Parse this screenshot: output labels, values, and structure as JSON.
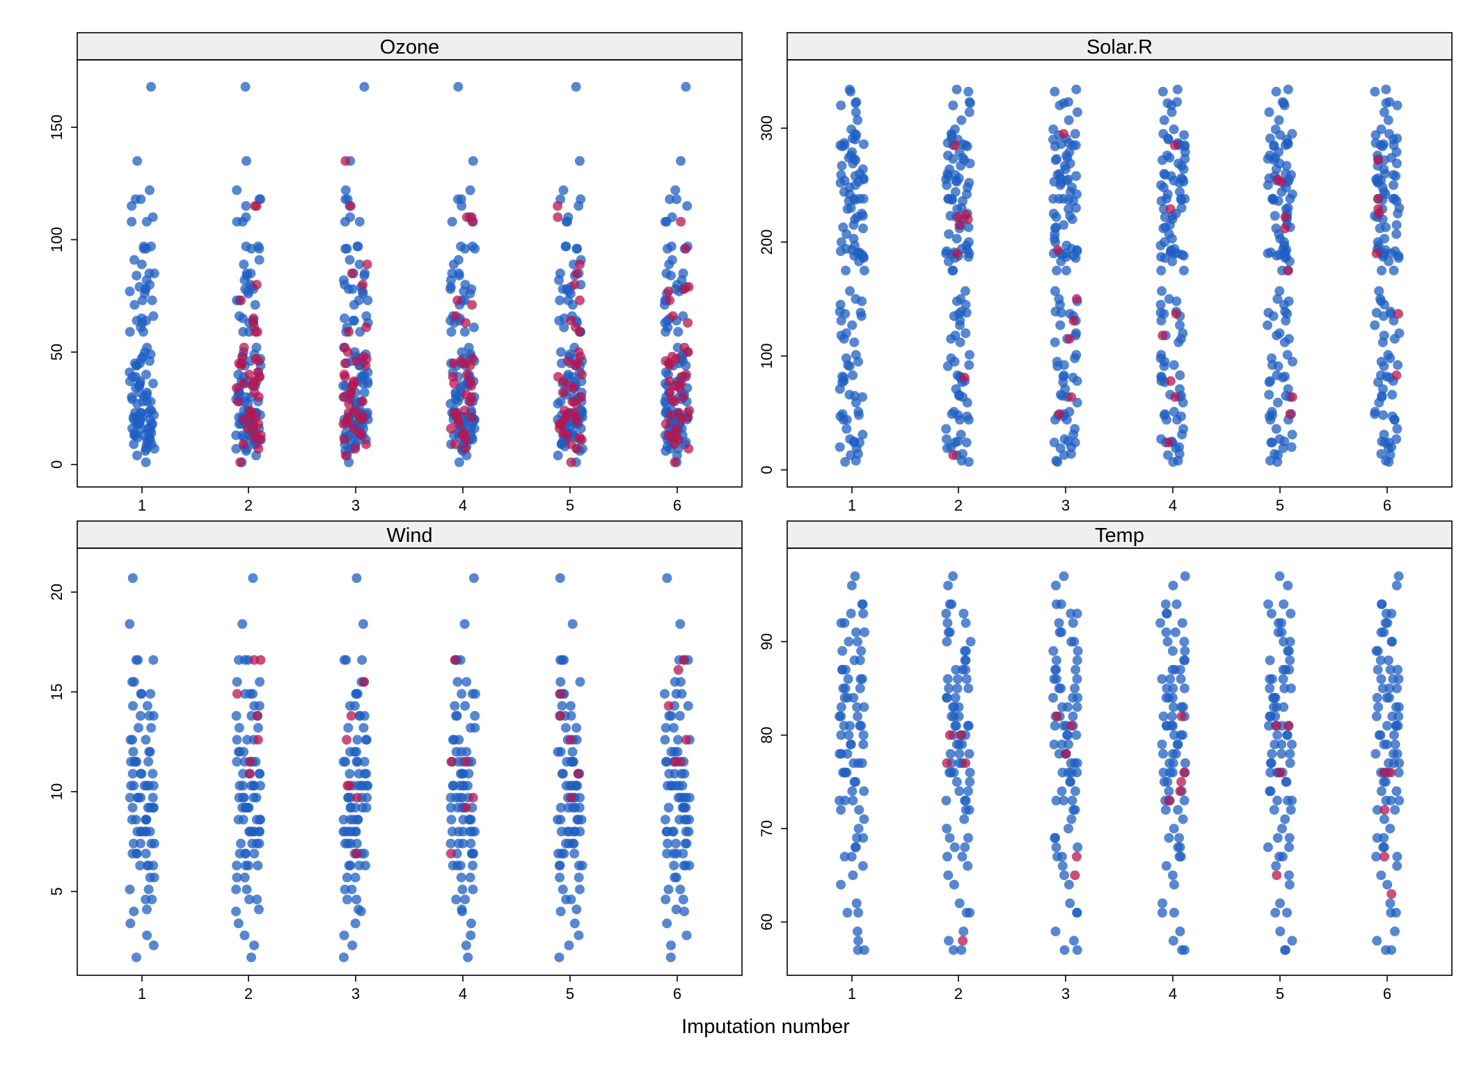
{
  "figure": {
    "xlabel": "Imputation number"
  },
  "colors": {
    "observed": "#1f5fc2",
    "imputed": "#b8154f",
    "strip": "#efefef"
  },
  "chart_data": [
    {
      "type": "scatter",
      "title": "Ozone",
      "x_categories": [
        1,
        2,
        3,
        4,
        5,
        6
      ],
      "ylim": [
        -10,
        180
      ],
      "yticks": [
        0,
        50,
        100,
        150
      ],
      "ytick_labels": [
        "0",
        "50",
        "100",
        "150"
      ],
      "observed_values": [
        1,
        4,
        6,
        7,
        7,
        8,
        9,
        9,
        10,
        11,
        11,
        12,
        12,
        13,
        13,
        13,
        14,
        14,
        14,
        16,
        16,
        16,
        16,
        18,
        18,
        18,
        18,
        18,
        19,
        20,
        20,
        20,
        21,
        21,
        21,
        21,
        22,
        23,
        23,
        23,
        23,
        24,
        24,
        27,
        28,
        28,
        28,
        29,
        30,
        30,
        31,
        32,
        32,
        34,
        35,
        35,
        36,
        36,
        37,
        37,
        39,
        39,
        40,
        41,
        44,
        44,
        45,
        45,
        46,
        47,
        48,
        49,
        50,
        52,
        59,
        59,
        61,
        63,
        64,
        64,
        65,
        66,
        71,
        73,
        73,
        76,
        77,
        78,
        78,
        79,
        80,
        82,
        84,
        85,
        85,
        89,
        91,
        96,
        96,
        97,
        97,
        108,
        108,
        110,
        115,
        118,
        118,
        122,
        135,
        168
      ],
      "imputed_values": [
        [],
        [
          1,
          7,
          9,
          11,
          12,
          13,
          14,
          16,
          18,
          18,
          20,
          21,
          22,
          23,
          24,
          28,
          30,
          32,
          34,
          35,
          36,
          37,
          37,
          39,
          40,
          41,
          44,
          45,
          45,
          46,
          47,
          48,
          52,
          59,
          59,
          63,
          65,
          73,
          80,
          115,
          115
        ],
        [
          4,
          7,
          9,
          11,
          13,
          14,
          16,
          18,
          19,
          20,
          20,
          21,
          22,
          23,
          24,
          27,
          28,
          30,
          31,
          32,
          35,
          36,
          37,
          39,
          40,
          44,
          45,
          46,
          47,
          48,
          50,
          52,
          59,
          61,
          80,
          85,
          89,
          115,
          135
        ],
        [
          7,
          9,
          11,
          13,
          14,
          16,
          18,
          20,
          21,
          22,
          23,
          24,
          28,
          30,
          31,
          35,
          36,
          37,
          39,
          40,
          44,
          45,
          45,
          46,
          47,
          63,
          66,
          71,
          73,
          108,
          110,
          110
        ],
        [
          1,
          7,
          9,
          11,
          12,
          13,
          14,
          16,
          18,
          18,
          19,
          20,
          21,
          22,
          23,
          24,
          27,
          28,
          30,
          32,
          34,
          35,
          37,
          39,
          40,
          44,
          45,
          46,
          48,
          50,
          59,
          61,
          64,
          73,
          80,
          85,
          89,
          110,
          115
        ],
        [
          1,
          7,
          9,
          11,
          12,
          13,
          14,
          16,
          18,
          20,
          21,
          22,
          23,
          24,
          28,
          29,
          30,
          32,
          34,
          35,
          36,
          37,
          39,
          40,
          44,
          45,
          46,
          47,
          48,
          50,
          52,
          63,
          66,
          73,
          77,
          78,
          79,
          96,
          108
        ]
      ]
    },
    {
      "type": "scatter",
      "title": "Solar.R",
      "x_categories": [
        1,
        2,
        3,
        4,
        5,
        6
      ],
      "ylim": [
        -15,
        360
      ],
      "yticks": [
        0,
        100,
        200,
        300
      ],
      "ytick_labels": [
        "0",
        "100",
        "200",
        "300"
      ],
      "observed_values": [
        7,
        8,
        13,
        14,
        19,
        20,
        24,
        24,
        25,
        27,
        31,
        36,
        44,
        44,
        47,
        48,
        49,
        51,
        59,
        64,
        65,
        66,
        71,
        77,
        78,
        81,
        82,
        83,
        91,
        92,
        95,
        98,
        101,
        112,
        115,
        118,
        120,
        127,
        131,
        135,
        137,
        138,
        139,
        145,
        148,
        150,
        157,
        175,
        175,
        183,
        186,
        187,
        188,
        189,
        190,
        190,
        191,
        192,
        193,
        194,
        197,
        200,
        203,
        207,
        212,
        213,
        215,
        220,
        222,
        223,
        225,
        229,
        230,
        236,
        237,
        238,
        238,
        238,
        242,
        244,
        248,
        250,
        252,
        253,
        254,
        255,
        256,
        258,
        259,
        260,
        264,
        267,
        269,
        272,
        273,
        274,
        276,
        279,
        284,
        285,
        285,
        286,
        287,
        290,
        291,
        294,
        295,
        299,
        307,
        314,
        320,
        322,
        323,
        332,
        334
      ],
      "imputed_values": [
        [],
        [
          13,
          81,
          190,
          215,
          220,
          222,
          224,
          285
        ],
        [
          49,
          64,
          115,
          131,
          150,
          193,
          295
        ],
        [
          24,
          64,
          78,
          118,
          137,
          229,
          285
        ],
        [
          49,
          64,
          175,
          212,
          222,
          253,
          255
        ],
        [
          83,
          137,
          190,
          225,
          229,
          238,
          272
        ]
      ]
    },
    {
      "type": "scatter",
      "title": "Wind",
      "x_categories": [
        1,
        2,
        3,
        4,
        5,
        6
      ],
      "ylim": [
        0.8,
        22.2
      ],
      "yticks": [
        5,
        10,
        15,
        20
      ],
      "ytick_labels": [
        "5",
        "10",
        "15",
        "20"
      ],
      "observed_values": [
        1.7,
        2.3,
        2.8,
        3.4,
        4.0,
        4.1,
        4.6,
        4.6,
        5.1,
        5.1,
        5.7,
        5.7,
        6.3,
        6.3,
        6.3,
        6.3,
        6.9,
        6.9,
        6.9,
        6.9,
        7.4,
        7.4,
        7.4,
        7.4,
        8.0,
        8.0,
        8.0,
        8.0,
        8.0,
        8.0,
        8.6,
        8.6,
        8.6,
        8.6,
        8.6,
        9.2,
        9.2,
        9.2,
        9.2,
        9.2,
        9.7,
        9.7,
        9.7,
        9.7,
        9.7,
        10.3,
        10.3,
        10.3,
        10.3,
        10.3,
        10.3,
        10.9,
        10.9,
        10.9,
        10.9,
        11.5,
        11.5,
        11.5,
        11.5,
        11.5,
        12.0,
        12.0,
        12.0,
        12.6,
        12.6,
        12.6,
        13.2,
        13.2,
        13.8,
        13.8,
        13.8,
        14.3,
        14.3,
        14.9,
        14.9,
        14.9,
        15.5,
        15.5,
        16.6,
        16.6,
        16.6,
        18.4,
        20.7
      ],
      "imputed_values": [
        [],
        [
          10.9,
          11.5,
          12.6,
          13.8,
          14.9,
          16.6,
          16.6
        ],
        [
          6.9,
          9.7,
          10.3,
          10.3,
          12.6,
          13.8,
          15.5
        ],
        [
          6.9,
          9.2,
          9.7,
          11.5,
          11.5,
          16.6
        ],
        [
          9.7,
          10.9,
          12.6,
          13.8,
          14.9
        ],
        [
          11.5,
          11.5,
          12.6,
          14.3,
          16.1,
          16.6
        ]
      ]
    },
    {
      "type": "scatter",
      "title": "Temp",
      "x_categories": [
        1,
        2,
        3,
        4,
        5,
        6
      ],
      "ylim": [
        54.3,
        100
      ],
      "yticks": [
        60,
        70,
        80,
        90
      ],
      "ytick_labels": [
        "60",
        "70",
        "80",
        "90"
      ],
      "observed_values": [
        57,
        57,
        58,
        59,
        61,
        61,
        62,
        64,
        65,
        66,
        67,
        67,
        68,
        68,
        69,
        69,
        70,
        71,
        72,
        72,
        73,
        73,
        73,
        74,
        74,
        75,
        75,
        76,
        76,
        76,
        76,
        77,
        77,
        77,
        78,
        78,
        78,
        79,
        79,
        79,
        80,
        80,
        80,
        81,
        81,
        81,
        81,
        82,
        82,
        82,
        83,
        83,
        83,
        84,
        84,
        84,
        85,
        85,
        85,
        86,
        86,
        86,
        87,
        87,
        87,
        88,
        88,
        89,
        89,
        90,
        90,
        91,
        91,
        92,
        92,
        93,
        93,
        94,
        94,
        96,
        97
      ],
      "imputed_values": [
        [],
        [
          58,
          77,
          77,
          80,
          80
        ],
        [
          65,
          67,
          78,
          81,
          82
        ],
        [
          73,
          74,
          75,
          76,
          82
        ],
        [
          65,
          76,
          81,
          81
        ],
        [
          63,
          67,
          72,
          76,
          76
        ]
      ]
    }
  ]
}
